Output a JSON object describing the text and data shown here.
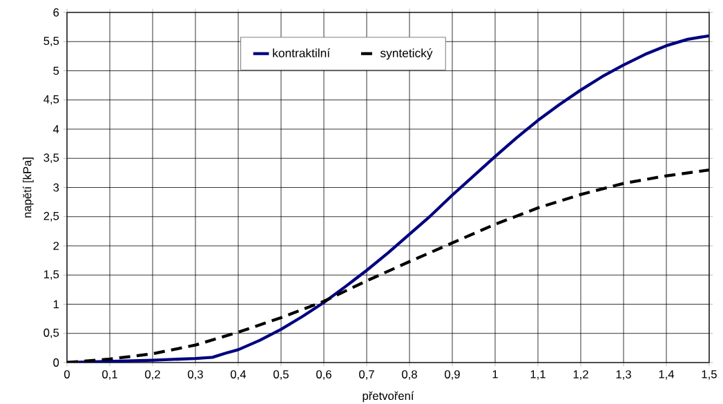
{
  "chart_data": {
    "type": "line",
    "xlabel": "přetvoření",
    "ylabel": "napětí [kPa]",
    "grid": true,
    "legend": "top",
    "marker": "none",
    "xlim": [
      0,
      1.5
    ],
    "ylim": [
      0,
      6
    ],
    "xticks": [
      0,
      {
        "value": 0.1,
        "label": "0,1"
      },
      {
        "value": 0.2,
        "label": "0,2"
      },
      {
        "value": 0.3,
        "label": "0,3"
      },
      {
        "value": 0.4,
        "label": "0,4"
      },
      {
        "value": 0.5,
        "label": "0,5"
      },
      {
        "value": 0.6,
        "label": "0,6"
      },
      {
        "value": 0.7,
        "label": "0,7"
      },
      {
        "value": 0.8,
        "label": "0,8"
      },
      {
        "value": 0.9,
        "label": "0,9"
      },
      1,
      {
        "value": 1.1,
        "label": "1,1"
      },
      {
        "value": 1.2,
        "label": "1,2"
      },
      {
        "value": 1.3,
        "label": "1,3"
      },
      {
        "value": 1.4,
        "label": "1,4"
      },
      {
        "value": 1.5,
        "label": "1,5"
      }
    ],
    "yticks": [
      0,
      {
        "value": 0.5,
        "label": "0,5"
      },
      1,
      {
        "value": 1.5,
        "label": "1,5"
      },
      2,
      {
        "value": 2.5,
        "label": "2,5"
      },
      3,
      {
        "value": 3.5,
        "label": "3,5"
      },
      4,
      {
        "value": 4.5,
        "label": "4,5"
      },
      5,
      {
        "value": 5.5,
        "label": "5,5"
      },
      6
    ],
    "series": [
      {
        "name": "kontraktilní",
        "color": "#000080",
        "line_style": "solid",
        "x": [
          0,
          0.1,
          0.2,
          0.3,
          0.34,
          0.37,
          0.4,
          0.45,
          0.5,
          0.55,
          0.6,
          0.65,
          0.7,
          0.75,
          0.8,
          0.85,
          0.9,
          0.95,
          1.0,
          1.05,
          1.1,
          1.15,
          1.2,
          1.25,
          1.3,
          1.35,
          1.4,
          1.45,
          1.5
        ],
        "values": [
          0,
          0.02,
          0.04,
          0.07,
          0.09,
          0.16,
          0.22,
          0.38,
          0.57,
          0.79,
          1.03,
          1.3,
          1.58,
          1.88,
          2.2,
          2.52,
          2.87,
          3.2,
          3.53,
          3.85,
          4.15,
          4.42,
          4.67,
          4.9,
          5.1,
          5.28,
          5.43,
          5.54,
          5.6
        ]
      },
      {
        "name": "syntetický",
        "color": "#000000",
        "line_style": "dashed",
        "x": [
          0,
          0.1,
          0.2,
          0.3,
          0.4,
          0.5,
          0.6,
          0.7,
          0.8,
          0.9,
          1.0,
          1.1,
          1.2,
          1.3,
          1.4,
          1.5
        ],
        "values": [
          0,
          0.06,
          0.15,
          0.3,
          0.52,
          0.77,
          1.05,
          1.4,
          1.73,
          2.05,
          2.37,
          2.65,
          2.88,
          3.07,
          3.2,
          3.3
        ]
      }
    ]
  }
}
